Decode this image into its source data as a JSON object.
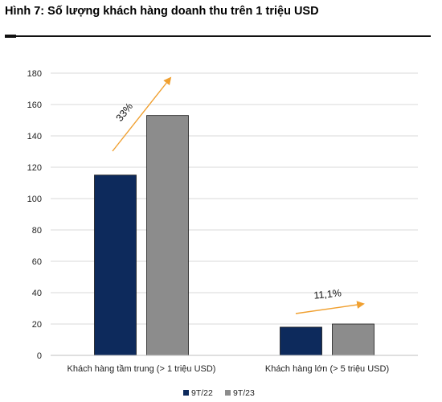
{
  "page": {
    "title": "Hình 7: Số lượng khách hàng doanh thu trên 1 triệu USD"
  },
  "chart_data": {
    "type": "bar",
    "title": "",
    "xlabel": "",
    "ylabel": "",
    "categories": [
      "Khách hàng tầm trung (> 1 triệu USD)",
      "Khách hàng lớn (> 5 triệu USD)"
    ],
    "series": [
      {
        "name": "9T/22",
        "values": [
          115,
          18
        ],
        "color": "#0d2a5c"
      },
      {
        "name": "9T/23",
        "values": [
          153,
          20
        ],
        "color": "#8c8c8c"
      }
    ],
    "ylim": [
      0,
      180
    ],
    "yticks": [
      0,
      20,
      40,
      60,
      80,
      100,
      120,
      140,
      160,
      180
    ],
    "grid": true,
    "legend_position": "bottom",
    "arrow_color": "#f0a030",
    "annotations": [
      {
        "category_index": 0,
        "text": "33%"
      },
      {
        "category_index": 1,
        "text": "11,1%"
      }
    ]
  }
}
